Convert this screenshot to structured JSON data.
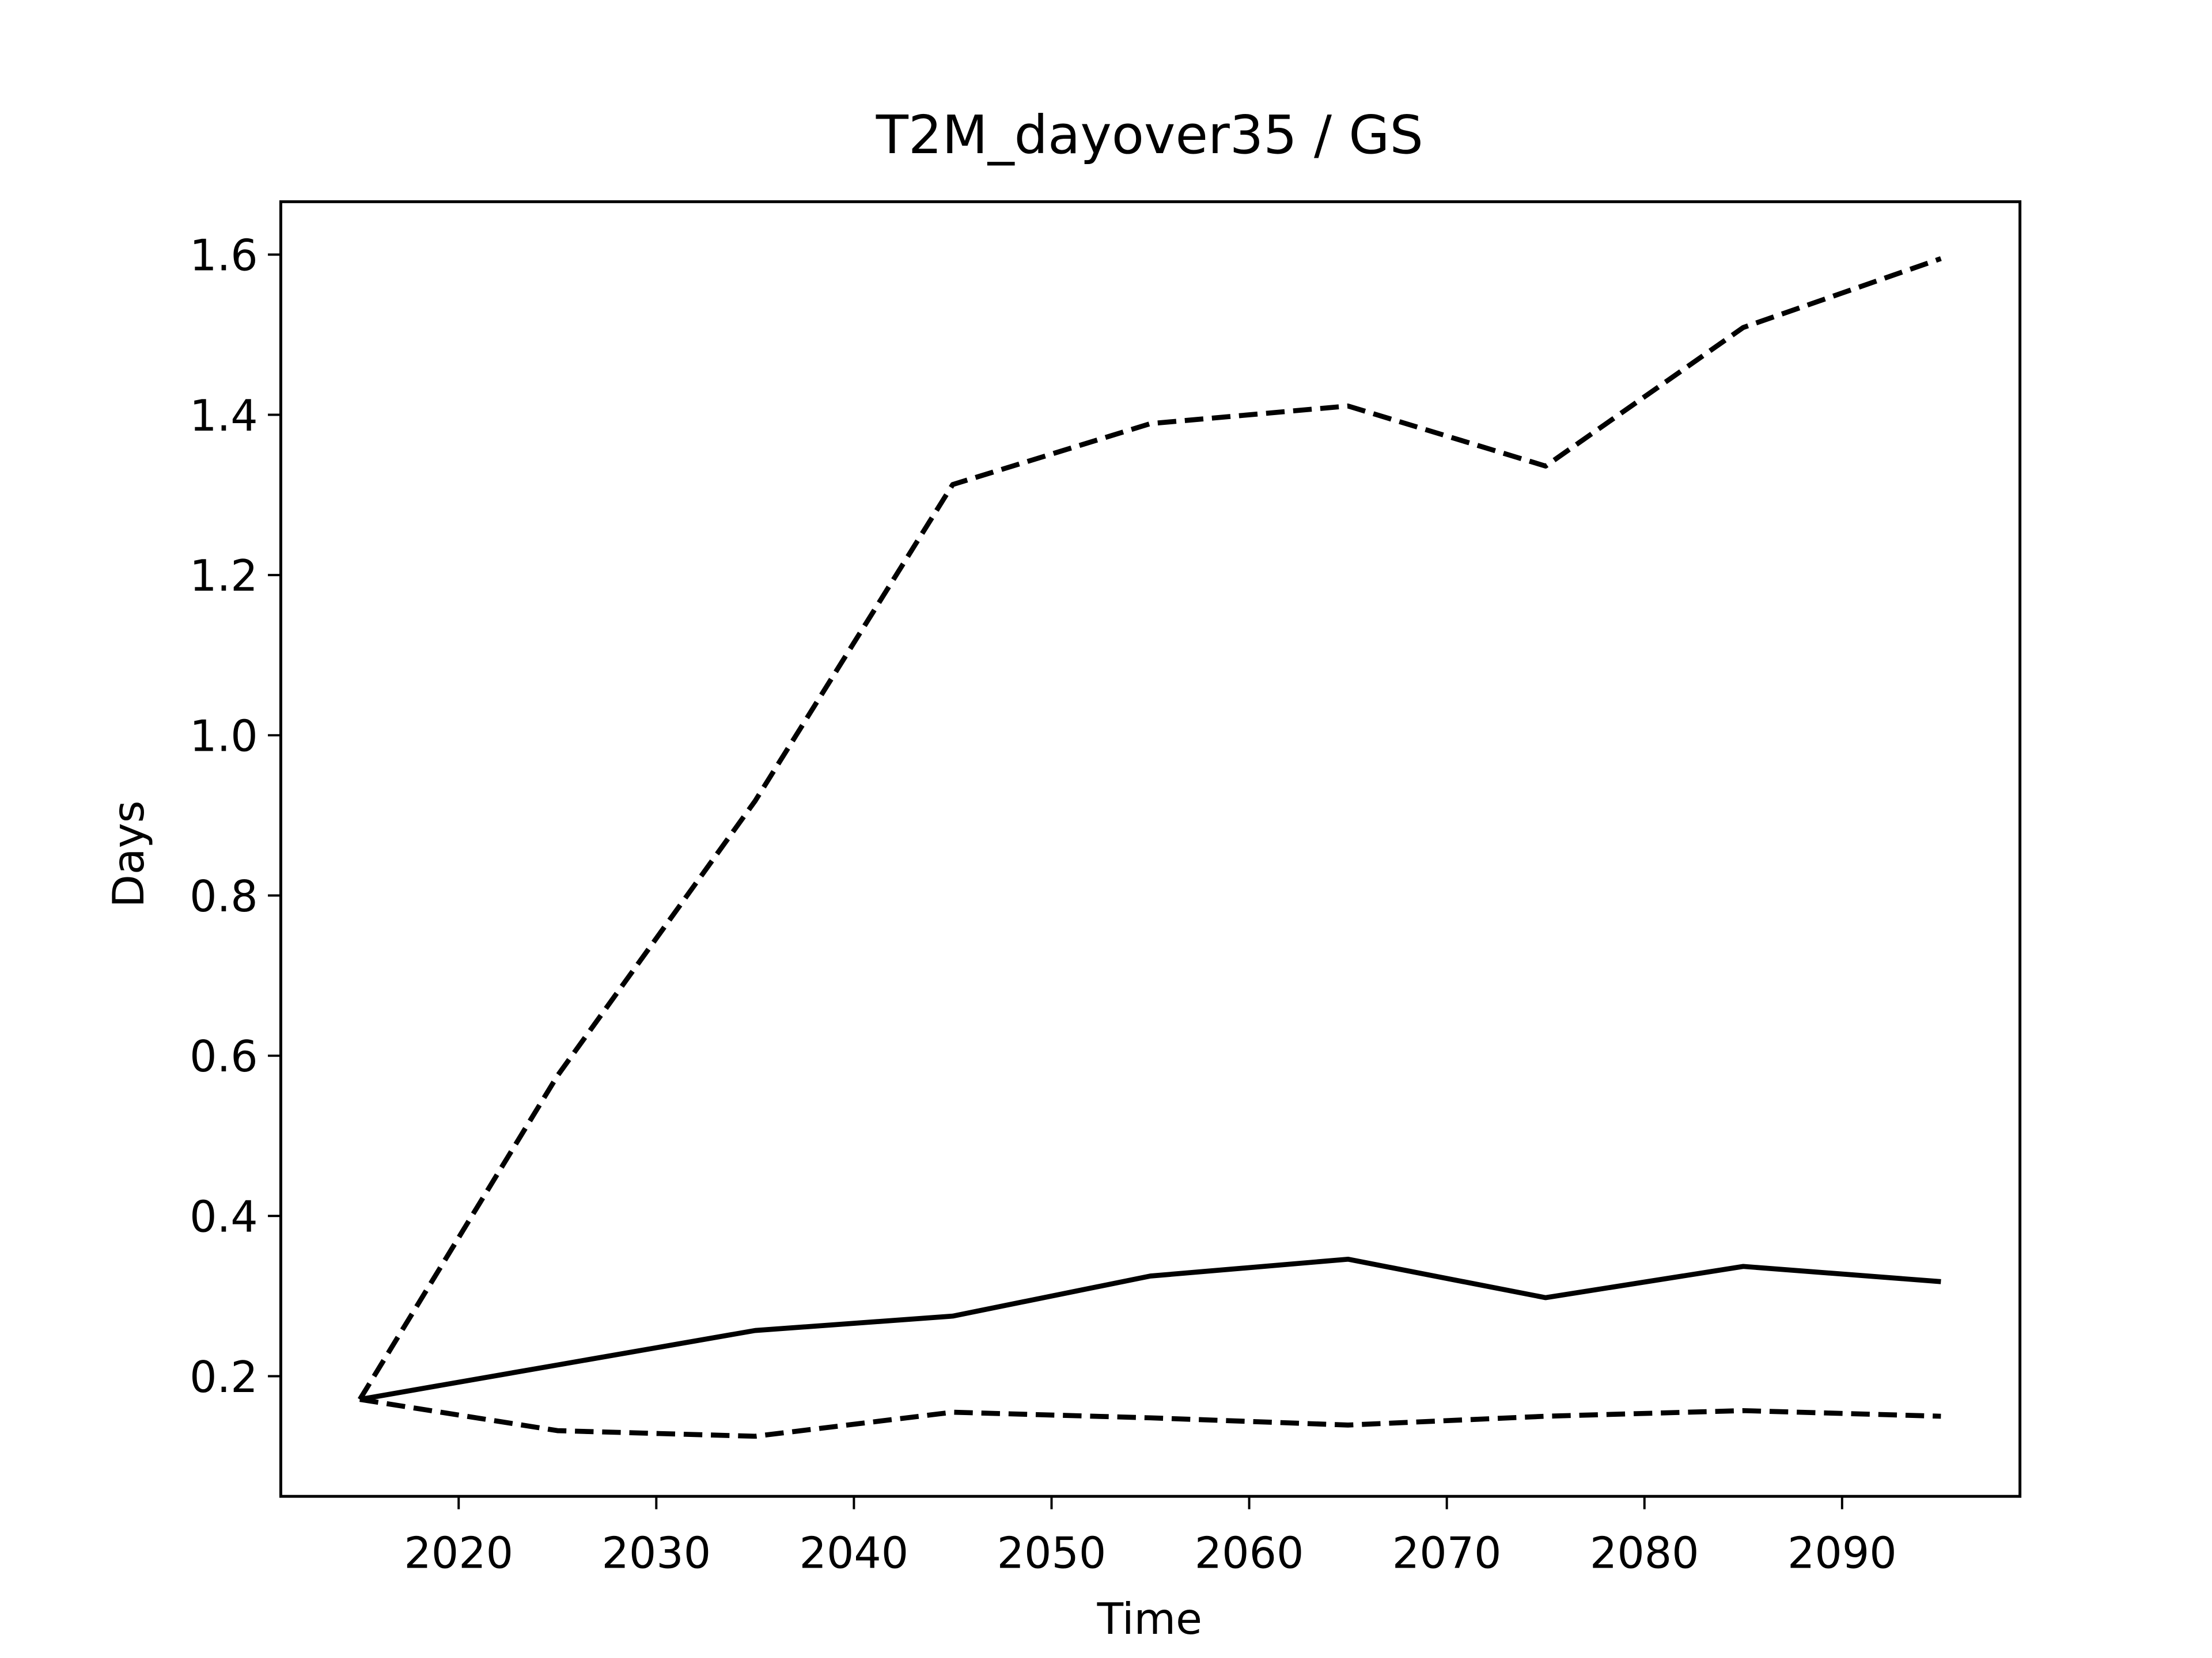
{
  "chart_data": {
    "type": "line",
    "title": "T2M_dayover35 / GS",
    "x_label": "Time",
    "y_label": "Days",
    "x": [
      2015,
      2025,
      2035,
      2045,
      2055,
      2065,
      2075,
      2085,
      2095
    ],
    "series": [
      {
        "color": "#000000",
        "dashed": false,
        "values": [
          0.171,
          0.214,
          0.257,
          0.275,
          0.325,
          0.346,
          0.298,
          0.337,
          0.318
        ]
      },
      {
        "color": "#000000",
        "dashed": true,
        "values": [
          0.171,
          0.575,
          0.918,
          1.313,
          1.389,
          1.411,
          1.336,
          1.509,
          1.595
        ]
      },
      {
        "color": "#000000",
        "dashed": true,
        "values": [
          0.171,
          0.132,
          0.125,
          0.155,
          0.148,
          0.139,
          0.15,
          0.157,
          0.15
        ]
      }
    ],
    "xlim": [
      2011,
      2099
    ],
    "xticks": [
      2020,
      2030,
      2040,
      2050,
      2060,
      2070,
      2080,
      2090
    ],
    "ylim": [
      0.05,
      1.666
    ],
    "yticks": [
      {
        "value": 0.2,
        "label": "0.2"
      },
      {
        "value": 0.4,
        "label": "0.4"
      },
      {
        "value": 0.6,
        "label": "0.6"
      },
      {
        "value": 0.8,
        "label": "0.8"
      },
      {
        "value": 1.0,
        "label": "1.0"
      },
      {
        "value": 1.2,
        "label": "1.2"
      },
      {
        "value": 1.4,
        "label": "1.4"
      },
      {
        "value": 1.6,
        "label": "1.6"
      }
    ],
    "grid": false
  }
}
